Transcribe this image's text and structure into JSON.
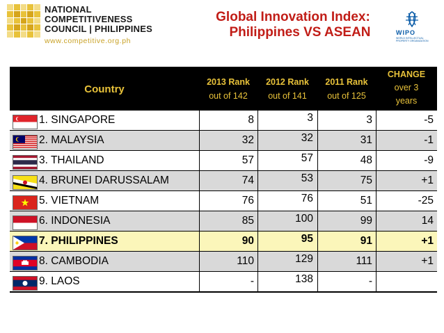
{
  "header": {
    "org_line1": "NATIONAL",
    "org_line2": "COMPETITIVENESS",
    "org_line3": "COUNCIL | PHILIPPINES",
    "org_url": "www.competitive.org.ph",
    "title_line1": "Global Innovation Index:",
    "title_line2": "Philippines VS ASEAN",
    "wipo_label": "WIPO",
    "wipo_sub": "WORLD INTELLECTUAL PROPERTY ORGANIZATION"
  },
  "table": {
    "columns": {
      "country": "Country",
      "rank2013_a": "2013 Rank",
      "rank2013_b": "out of 142",
      "rank2012_a": "2012 Rank",
      "rank2012_b": "out of 141",
      "rank2011_a": "2011 Rank",
      "rank2011_b": "out of 125",
      "change_a": "CHANGE",
      "change_b": "over 3",
      "change_c": "years"
    },
    "rows": [
      {
        "country": "1. SINGAPORE",
        "flag": "singapore-flag-icon",
        "r2013": "8",
        "r2012": "3",
        "r2011": "3",
        "change": "-5"
      },
      {
        "country": "2. MALAYSIA",
        "flag": "malaysia-flag-icon",
        "r2013": "32",
        "r2012": "32",
        "r2011": "31",
        "change": "-1"
      },
      {
        "country": "3. THAILAND",
        "flag": "thailand-flag-icon",
        "r2013": "57",
        "r2012": "57",
        "r2011": "48",
        "change": "-9"
      },
      {
        "country": "4. BRUNEI DARUSSALAM",
        "flag": "brunei-flag-icon",
        "r2013": "74",
        "r2012": "53",
        "r2011": "75",
        "change": "+1"
      },
      {
        "country": "5. VIETNAM",
        "flag": "vietnam-flag-icon",
        "r2013": "76",
        "r2012": "76",
        "r2011": "51",
        "change": "-25"
      },
      {
        "country": "6. INDONESIA",
        "flag": "indonesia-flag-icon",
        "r2013": "85",
        "r2012": "100",
        "r2011": "99",
        "change": "14"
      },
      {
        "country": "7. PHILIPPINES",
        "flag": "philippines-flag-icon",
        "r2013": "90",
        "r2012": "95",
        "r2011": "91",
        "change": "+1"
      },
      {
        "country": "8. CAMBODIA",
        "flag": "cambodia-flag-icon",
        "r2013": "110",
        "r2012": "129",
        "r2011": "111",
        "change": "+1"
      },
      {
        "country": "9. LAOS",
        "flag": "laos-flag-icon",
        "r2013": "-",
        "r2012": "138",
        "r2011": "-",
        "change": ""
      }
    ]
  },
  "colors": {
    "title": "#c11d17",
    "header_text": "#e8c23a",
    "highlight_row": "#fbf6ba",
    "gray_row": "#d9d9d9"
  }
}
